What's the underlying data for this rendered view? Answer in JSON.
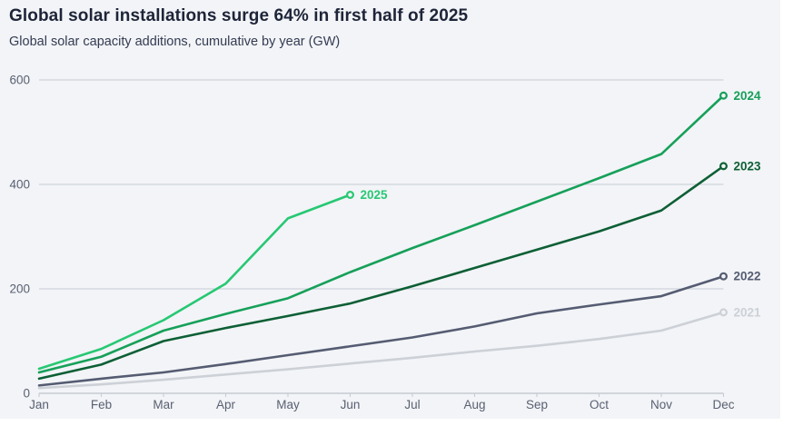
{
  "header": {
    "title": "Global solar installations surge 64% in first half of 2025",
    "subtitle": "Global solar capacity additions, cumulative by year (GW)"
  },
  "chart_data": {
    "type": "line",
    "title": "Global solar installations surge 64% in first half of 2025",
    "subtitle": "Global solar capacity additions, cumulative by year (GW)",
    "unit": "GW",
    "x_labels": [
      "Jan",
      "Feb",
      "Mar",
      "Apr",
      "May",
      "Jun",
      "Jul",
      "Aug",
      "Sep",
      "Oct",
      "Nov",
      "Dec"
    ],
    "yticks": [
      0,
      200,
      400,
      600
    ],
    "ylim": [
      0,
      620
    ],
    "grid": "horizontal-only",
    "legend_position": "end-of-line-labels",
    "colors": {
      "background": "#f2f4f7",
      "gridline": "#c7ccd4",
      "axis_text": "#5a6072",
      "title_text": "#1e2438"
    },
    "series": [
      {
        "name": "2021",
        "color": "#cdd1d7",
        "values": [
          10,
          17,
          26,
          36,
          46,
          57,
          68,
          80,
          91,
          104,
          120,
          155
        ]
      },
      {
        "name": "2022",
        "color": "#555c72",
        "values": [
          15,
          28,
          40,
          56,
          73,
          90,
          107,
          128,
          153,
          170,
          186,
          224
        ]
      },
      {
        "name": "2023",
        "color": "#0d5f35",
        "values": [
          28,
          55,
          100,
          125,
          148,
          172,
          205,
          240,
          275,
          310,
          350,
          435
        ]
      },
      {
        "name": "2024",
        "color": "#16a059",
        "values": [
          40,
          70,
          120,
          152,
          182,
          232,
          278,
          322,
          367,
          412,
          458,
          570
        ]
      },
      {
        "name": "2025",
        "color": "#27c873",
        "values": [
          47,
          85,
          140,
          210,
          335,
          380
        ]
      }
    ]
  }
}
